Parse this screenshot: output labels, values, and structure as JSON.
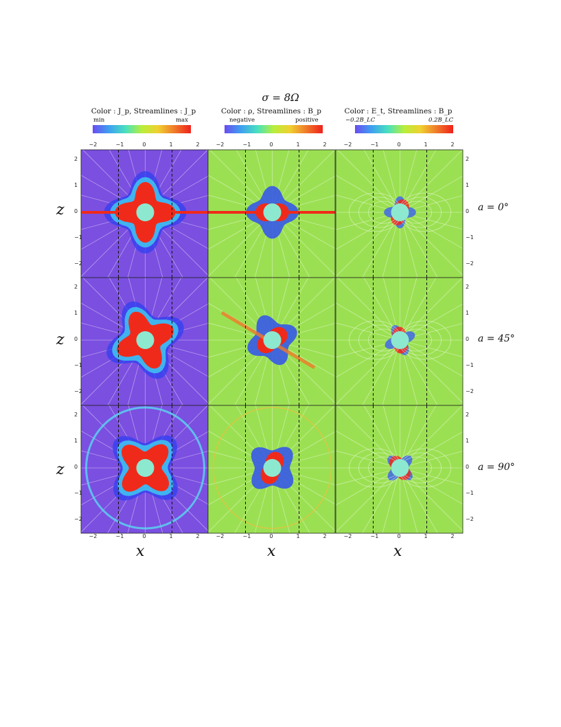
{
  "figure": {
    "title": "σ = 8Ω",
    "columns": [
      {
        "heading": "Color : J_p,    Streamlines : J_p",
        "cb_min": "min",
        "cb_max": "max",
        "bg": "#7b4fe0"
      },
      {
        "heading": "Color : ρ,    Streamlines : B_p",
        "cb_min": "negative",
        "cb_max": "positive",
        "bg": "#9be052"
      },
      {
        "heading": "Color : E_t,    Streamlines : B_p",
        "cb_min": "−0.2B_LC",
        "cb_max": "0.2B_LC",
        "bg": "#9be052"
      }
    ],
    "rows": [
      {
        "label": "a = 0°"
      },
      {
        "label": "a = 45°"
      },
      {
        "label": "a = 90°"
      }
    ],
    "ylabel": "z",
    "xlabel": "x",
    "x_ticks": [
      "−2",
      "−1",
      "0",
      "1",
      "2"
    ],
    "y_ticks": [
      "2",
      "1",
      "0",
      "−1",
      "−2"
    ],
    "colors": {
      "star": "#8de8d0",
      "hot": "#f02a1a",
      "cool": "#2f3ff0"
    }
  }
}
